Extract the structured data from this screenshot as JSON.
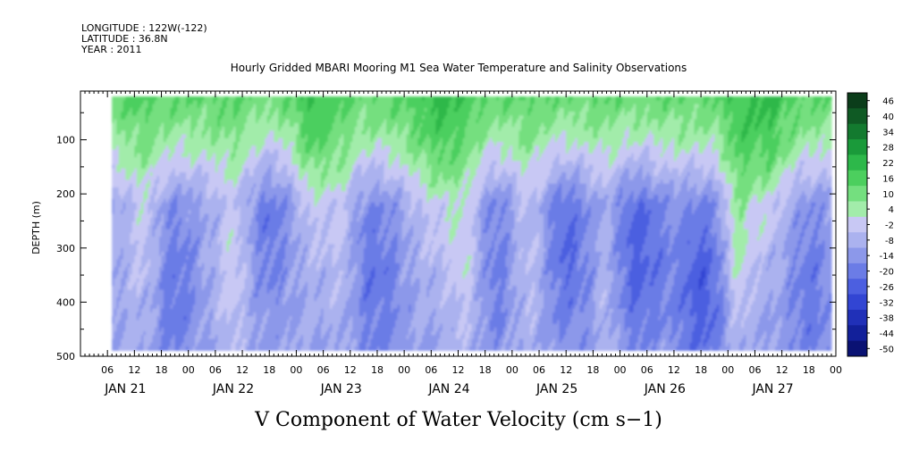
{
  "header": {
    "longitude": "LONGITUDE : 122W(-122)",
    "latitude": "LATITUDE : 36.8N",
    "year": "YEAR : 2011"
  },
  "chart_data": {
    "type": "heatmap",
    "title": "Hourly Gridded MBARI Mooring M1 Sea Water Temperature and Salinity Observations",
    "xlabel": "V Component of Water Velocity (cm s−1)",
    "ylabel": "DEPTH (m)",
    "x_range_hours": [
      0,
      168
    ],
    "data_start_hour": 7,
    "data_end_hour": 167,
    "y_range": [
      500,
      0
    ],
    "y_visible_top": 10,
    "data_depth_range": [
      20,
      485
    ],
    "y_ticks": [
      100,
      200,
      300,
      400,
      500
    ],
    "x_hour_ticks": [
      "06",
      "12",
      "18",
      "00",
      "06",
      "12",
      "18",
      "00",
      "06",
      "12",
      "18",
      "00",
      "06",
      "12",
      "18",
      "00",
      "06",
      "12",
      "18",
      "00",
      "06",
      "12",
      "18",
      "00",
      "06",
      "12",
      "18",
      "00"
    ],
    "x_day_labels": [
      "JAN 21",
      "JAN 22",
      "JAN 23",
      "JAN 24",
      "JAN 25",
      "JAN 26",
      "JAN 27"
    ],
    "colorbar": {
      "labels": [
        "46",
        "40",
        "34",
        "28",
        "22",
        "16",
        "10",
        "4",
        "-2",
        "-8",
        "-14",
        "-20",
        "-26",
        "-32",
        "-38",
        "-44",
        "-50"
      ],
      "colors": [
        "#0b3d1a",
        "#0f5a24",
        "#137a2f",
        "#1a9a3a",
        "#2db84a",
        "#4ccf5e",
        "#74df7f",
        "#a2ecaa",
        "#c8c8f4",
        "#abb2ef",
        "#8c98ea",
        "#6b7ce6",
        "#4c5fe0",
        "#3245d3",
        "#2030b8",
        "#12209a",
        "#0a1273"
      ]
    },
    "field": {
      "surface_mean": 16,
      "mean_at_100m": 8,
      "deep_mean": -8,
      "columns": [
        {
          "hour": 14,
          "depth": 250,
          "amp": 9,
          "width_h": 4
        },
        {
          "hour": 21,
          "depth": 380,
          "amp": -10,
          "width_h": 5
        },
        {
          "hour": 34,
          "depth": 320,
          "amp": 10,
          "width_h": 4
        },
        {
          "hour": 42,
          "depth": 250,
          "amp": -9,
          "width_h": 5
        },
        {
          "hour": 52,
          "depth": 140,
          "amp": 10,
          "width_h": 4
        },
        {
          "hour": 58,
          "depth": 250,
          "amp": 8,
          "width_h": 3
        },
        {
          "hour": 66,
          "depth": 360,
          "amp": -10,
          "width_h": 6
        },
        {
          "hour": 80,
          "depth": 150,
          "amp": 11,
          "width_h": 7
        },
        {
          "hour": 86,
          "depth": 320,
          "amp": 9,
          "width_h": 4
        },
        {
          "hour": 92,
          "depth": 320,
          "amp": -9,
          "width_h": 5
        },
        {
          "hour": 100,
          "depth": 300,
          "amp": 9,
          "width_h": 4
        },
        {
          "hour": 108,
          "depth": 300,
          "amp": -12,
          "width_h": 6
        },
        {
          "hour": 117,
          "depth": 360,
          "amp": 7,
          "width_h": 3
        },
        {
          "hour": 124,
          "depth": 310,
          "amp": -14,
          "width_h": 6
        },
        {
          "hour": 138,
          "depth": 380,
          "amp": -15,
          "width_h": 6
        },
        {
          "hour": 146,
          "depth": 270,
          "amp": 14,
          "width_h": 3
        },
        {
          "hour": 152,
          "depth": 150,
          "amp": 12,
          "width_h": 6
        },
        {
          "hour": 162,
          "depth": 380,
          "amp": -9,
          "width_h": 6
        }
      ]
    }
  }
}
